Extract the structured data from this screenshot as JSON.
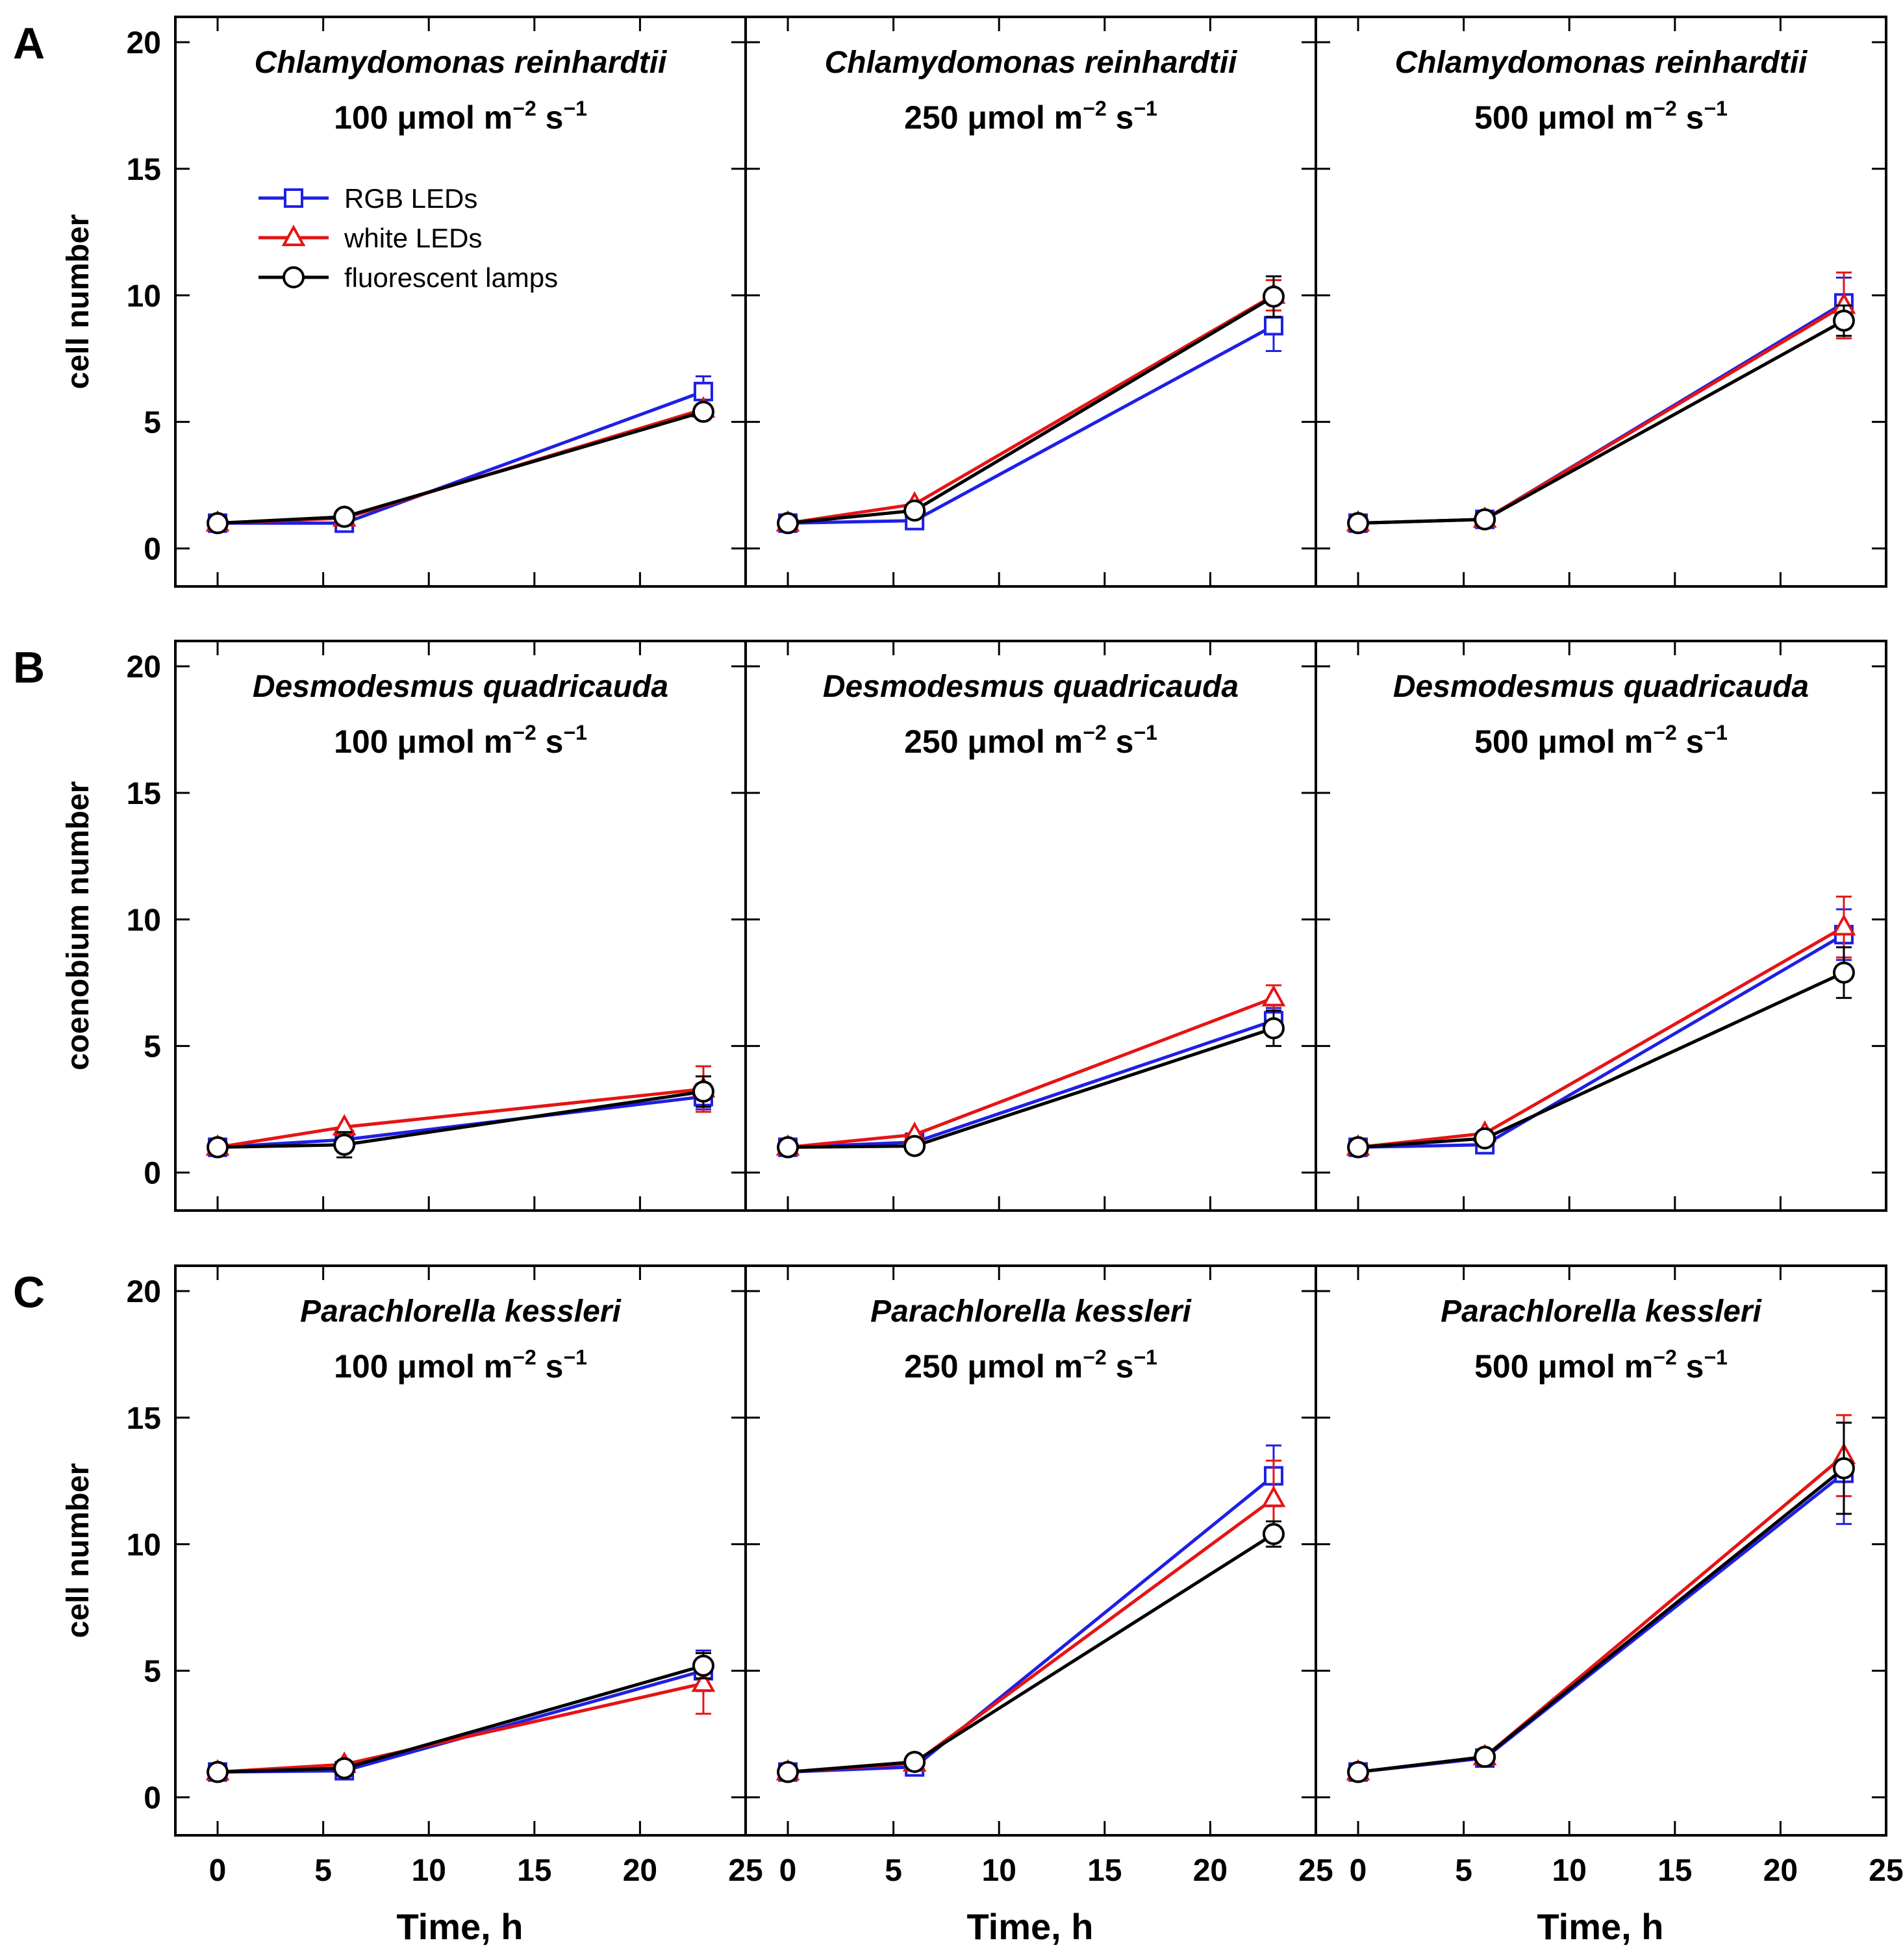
{
  "figure": {
    "x_axis_label": "Time, h",
    "legend": [
      {
        "key": "rgb",
        "label": "RGB LEDs",
        "color": "#1f1fe6",
        "marker": "square"
      },
      {
        "key": "white",
        "label": "white LEDs",
        "color": "#e61414",
        "marker": "triangle"
      },
      {
        "key": "fluor",
        "label": "fluorescent lamps",
        "color": "#000000",
        "marker": "circle"
      }
    ]
  },
  "chart_data": [
    {
      "type": "line",
      "panel_letter": "A",
      "ylabel": "cell number",
      "xlim": [
        -2,
        25
      ],
      "ylim": [
        -1.5,
        21
      ],
      "x_ticks": [
        0,
        5,
        10,
        15,
        20,
        25
      ],
      "y_ticks": [
        0,
        5,
        10,
        15,
        20
      ],
      "subplots": [
        {
          "species": "Chlamydomonas reinhardtii",
          "irr_value": "100",
          "irr_unit": "μmol m",
          "exp1": "−2",
          "unit_s": " s",
          "exp2": "−1",
          "x": [
            0,
            6,
            23
          ],
          "series": [
            {
              "key": "rgb",
              "name": "RGB LEDs",
              "values": [
                1.0,
                1.0,
                6.2
              ],
              "errors": [
                0.05,
                0.1,
                0.6
              ]
            },
            {
              "key": "white",
              "name": "white LEDs",
              "values": [
                1.0,
                1.2,
                5.5
              ],
              "errors": [
                0.05,
                0.1,
                0.3
              ]
            },
            {
              "key": "fluor",
              "name": "fluorescent lamps",
              "values": [
                1.0,
                1.25,
                5.4
              ],
              "errors": [
                0.05,
                0.1,
                0.3
              ]
            }
          ]
        },
        {
          "species": "Chlamydomonas reinhardtii",
          "irr_value": "250",
          "irr_unit": "μmol m",
          "exp1": "−2",
          "unit_s": " s",
          "exp2": "−1",
          "x": [
            0,
            6,
            23
          ],
          "series": [
            {
              "key": "rgb",
              "name": "RGB LEDs",
              "values": [
                1.0,
                1.1,
                8.8
              ],
              "errors": [
                0.05,
                0.1,
                1.0
              ]
            },
            {
              "key": "white",
              "name": "white LEDs",
              "values": [
                1.0,
                1.75,
                10.0
              ],
              "errors": [
                0.05,
                0.15,
                0.6
              ]
            },
            {
              "key": "fluor",
              "name": "fluorescent lamps",
              "values": [
                1.0,
                1.5,
                9.95
              ],
              "errors": [
                0.05,
                0.15,
                0.8
              ]
            }
          ]
        },
        {
          "species": "Chlamydomonas reinhardtii",
          "irr_value": "500",
          "irr_unit": "μmol m",
          "exp1": "−2",
          "unit_s": " s",
          "exp2": "−1",
          "x": [
            0,
            6,
            23
          ],
          "series": [
            {
              "key": "rgb",
              "name": "RGB LEDs",
              "values": [
                1.0,
                1.15,
                9.7
              ],
              "errors": [
                0.05,
                0.1,
                1.0
              ]
            },
            {
              "key": "white",
              "name": "white LEDs",
              "values": [
                1.0,
                1.15,
                9.6
              ],
              "errors": [
                0.05,
                0.1,
                1.3
              ]
            },
            {
              "key": "fluor",
              "name": "fluorescent lamps",
              "values": [
                1.0,
                1.15,
                9.0
              ],
              "errors": [
                0.05,
                0.1,
                0.6
              ]
            }
          ]
        }
      ]
    },
    {
      "type": "line",
      "panel_letter": "B",
      "ylabel": "coenobium number",
      "xlim": [
        -2,
        25
      ],
      "ylim": [
        -1.5,
        21
      ],
      "x_ticks": [
        0,
        5,
        10,
        15,
        20,
        25
      ],
      "y_ticks": [
        0,
        5,
        10,
        15,
        20
      ],
      "subplots": [
        {
          "species": "Desmodesmus quadricauda",
          "irr_value": "100",
          "irr_unit": "μmol m",
          "exp1": "−2",
          "unit_s": " s",
          "exp2": "−1",
          "x": [
            0,
            6,
            23
          ],
          "series": [
            {
              "key": "rgb",
              "name": "RGB LEDs",
              "values": [
                1.0,
                1.3,
                3.0
              ],
              "errors": [
                0.05,
                0.2,
                0.5
              ]
            },
            {
              "key": "white",
              "name": "white LEDs",
              "values": [
                1.0,
                1.8,
                3.3
              ],
              "errors": [
                0.05,
                0.2,
                0.9
              ]
            },
            {
              "key": "fluor",
              "name": "fluorescent lamps",
              "values": [
                1.0,
                1.1,
                3.2
              ],
              "errors": [
                0.05,
                0.5,
                0.6
              ]
            }
          ]
        },
        {
          "species": "Desmodesmus quadricauda",
          "irr_value": "250",
          "irr_unit": "μmol m",
          "exp1": "−2",
          "unit_s": " s",
          "exp2": "−1",
          "x": [
            0,
            6,
            23
          ],
          "series": [
            {
              "key": "rgb",
              "name": "RGB LEDs",
              "values": [
                1.0,
                1.2,
                6.0
              ],
              "errors": [
                0.05,
                0.1,
                0.5
              ]
            },
            {
              "key": "white",
              "name": "white LEDs",
              "values": [
                1.0,
                1.5,
                6.9
              ],
              "errors": [
                0.05,
                0.1,
                0.5
              ]
            },
            {
              "key": "fluor",
              "name": "fluorescent lamps",
              "values": [
                1.0,
                1.05,
                5.7
              ],
              "errors": [
                0.05,
                0.1,
                0.7
              ]
            }
          ]
        },
        {
          "species": "Desmodesmus quadricauda",
          "irr_value": "500",
          "irr_unit": "μmol m",
          "exp1": "−2",
          "unit_s": " s",
          "exp2": "−1",
          "x": [
            0,
            6,
            23
          ],
          "series": [
            {
              "key": "rgb",
              "name": "RGB LEDs",
              "values": [
                1.0,
                1.1,
                9.4
              ],
              "errors": [
                0.05,
                0.1,
                1.0
              ]
            },
            {
              "key": "white",
              "name": "white LEDs",
              "values": [
                1.0,
                1.55,
                9.7
              ],
              "errors": [
                0.05,
                0.1,
                1.2
              ]
            },
            {
              "key": "fluor",
              "name": "fluorescent lamps",
              "values": [
                1.0,
                1.35,
                7.9
              ],
              "errors": [
                0.05,
                0.1,
                1.0
              ]
            }
          ]
        }
      ]
    },
    {
      "type": "line",
      "panel_letter": "C",
      "ylabel": "cell number",
      "xlim": [
        -2,
        25
      ],
      "ylim": [
        -1.5,
        21
      ],
      "x_ticks": [
        0,
        5,
        10,
        15,
        20,
        25
      ],
      "y_ticks": [
        0,
        5,
        10,
        15,
        20
      ],
      "subplots": [
        {
          "species": "Parachlorella kessleri",
          "irr_value": "100",
          "irr_unit": "μmol m",
          "exp1": "−2",
          "unit_s": " s",
          "exp2": "−1",
          "x": [
            0,
            6,
            23
          ],
          "series": [
            {
              "key": "rgb",
              "name": "RGB LEDs",
              "values": [
                1.0,
                1.05,
                5.0
              ],
              "errors": [
                0.05,
                0.1,
                0.8
              ]
            },
            {
              "key": "white",
              "name": "white LEDs",
              "values": [
                1.0,
                1.3,
                4.5
              ],
              "errors": [
                0.05,
                0.1,
                1.2
              ]
            },
            {
              "key": "fluor",
              "name": "fluorescent lamps",
              "values": [
                1.0,
                1.15,
                5.2
              ],
              "errors": [
                0.05,
                0.1,
                0.5
              ]
            }
          ]
        },
        {
          "species": "Parachlorella kessleri",
          "irr_value": "250",
          "irr_unit": "μmol m",
          "exp1": "−2",
          "unit_s": " s",
          "exp2": "−1",
          "x": [
            0,
            6,
            23
          ],
          "series": [
            {
              "key": "rgb",
              "name": "RGB LEDs",
              "values": [
                1.0,
                1.2,
                12.7
              ],
              "errors": [
                0.05,
                0.1,
                1.2
              ]
            },
            {
              "key": "white",
              "name": "white LEDs",
              "values": [
                1.0,
                1.35,
                11.8
              ],
              "errors": [
                0.05,
                0.1,
                1.5
              ]
            },
            {
              "key": "fluor",
              "name": "fluorescent lamps",
              "values": [
                1.0,
                1.4,
                10.4
              ],
              "errors": [
                0.05,
                0.1,
                0.5
              ]
            }
          ]
        },
        {
          "species": "Parachlorella kessleri",
          "irr_value": "500",
          "irr_unit": "μmol m",
          "exp1": "−2",
          "unit_s": " s",
          "exp2": "−1",
          "x": [
            0,
            6,
            23
          ],
          "series": [
            {
              "key": "rgb",
              "name": "RGB LEDs",
              "values": [
                1.0,
                1.55,
                12.8
              ],
              "errors": [
                0.05,
                0.1,
                2.0
              ]
            },
            {
              "key": "white",
              "name": "white LEDs",
              "values": [
                1.0,
                1.6,
                13.5
              ],
              "errors": [
                0.05,
                0.1,
                1.6
              ]
            },
            {
              "key": "fluor",
              "name": "fluorescent lamps",
              "values": [
                1.0,
                1.6,
                13.0
              ],
              "errors": [
                0.05,
                0.1,
                1.8
              ]
            }
          ]
        }
      ]
    }
  ]
}
